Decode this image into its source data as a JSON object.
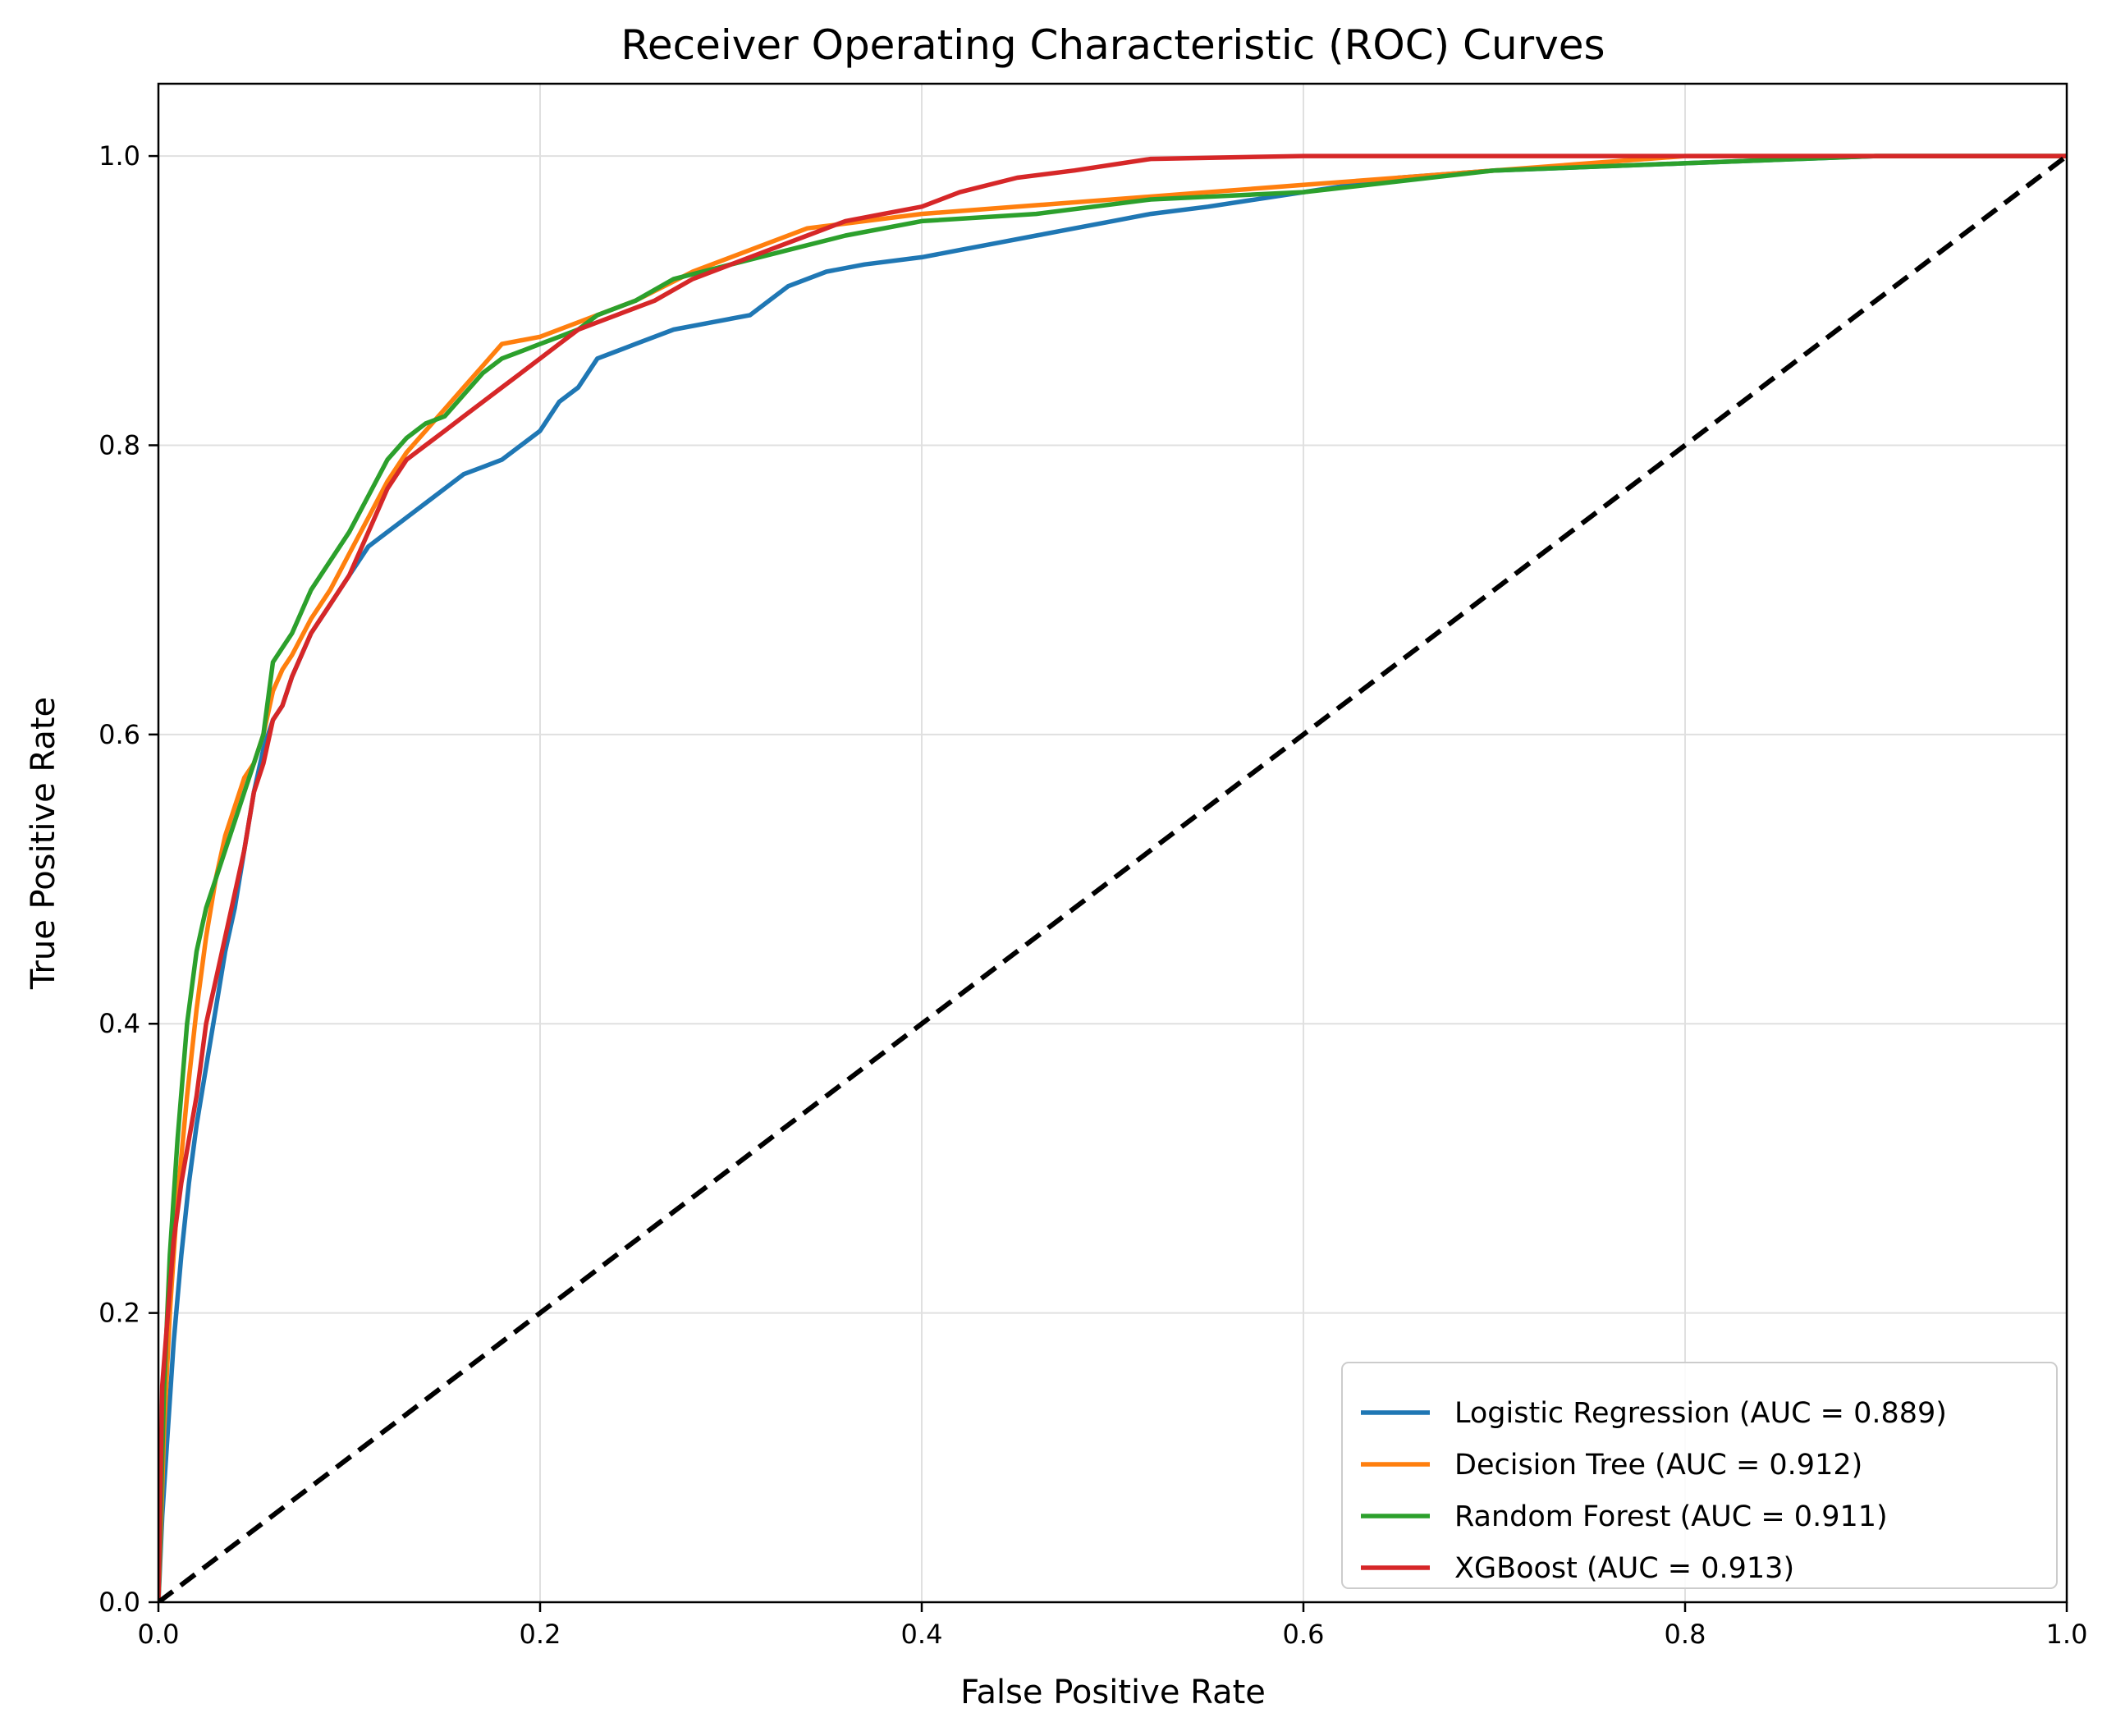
{
  "chart_data": {
    "type": "line",
    "title": "Receiver Operating Characteristic (ROC) Curves",
    "xlabel": "False Positive Rate",
    "ylabel": "True Positive Rate",
    "xlim": [
      0.0,
      1.0
    ],
    "ylim": [
      0.0,
      1.05
    ],
    "xticks": [
      "0.0",
      "0.2",
      "0.4",
      "0.6",
      "0.8",
      "1.0"
    ],
    "yticks": [
      "0.0",
      "0.2",
      "0.4",
      "0.6",
      "0.8",
      "1.0"
    ],
    "xtick_values": [
      0.0,
      0.2,
      0.4,
      0.6,
      0.8,
      1.0
    ],
    "ytick_values": [
      0.0,
      0.2,
      0.4,
      0.6,
      0.8,
      1.0
    ],
    "grid": true,
    "legend_position": "lower-right",
    "series": [
      {
        "name": "Logistic Regression (AUC = 0.889)",
        "color": "#1f77b4",
        "x": [
          0.0,
          0.002,
          0.005,
          0.008,
          0.012,
          0.016,
          0.02,
          0.025,
          0.03,
          0.035,
          0.04,
          0.045,
          0.05,
          0.055,
          0.06,
          0.065,
          0.07,
          0.08,
          0.09,
          0.1,
          0.11,
          0.12,
          0.13,
          0.14,
          0.15,
          0.16,
          0.17,
          0.18,
          0.19,
          0.2,
          0.21,
          0.22,
          0.23,
          0.24,
          0.25,
          0.27,
          0.29,
          0.31,
          0.32,
          0.33,
          0.35,
          0.37,
          0.4,
          0.42,
          0.44,
          0.46,
          0.48,
          0.5,
          0.52,
          0.55,
          0.6,
          0.65,
          0.7,
          0.8,
          0.9,
          1.0
        ],
        "y": [
          0.0,
          0.06,
          0.12,
          0.18,
          0.24,
          0.29,
          0.33,
          0.37,
          0.41,
          0.45,
          0.48,
          0.52,
          0.56,
          0.59,
          0.61,
          0.62,
          0.64,
          0.67,
          0.69,
          0.71,
          0.73,
          0.74,
          0.75,
          0.76,
          0.77,
          0.78,
          0.785,
          0.79,
          0.8,
          0.81,
          0.83,
          0.84,
          0.86,
          0.865,
          0.87,
          0.88,
          0.885,
          0.89,
          0.9,
          0.91,
          0.92,
          0.925,
          0.93,
          0.935,
          0.94,
          0.945,
          0.95,
          0.955,
          0.96,
          0.965,
          0.975,
          0.985,
          0.99,
          0.995,
          1.0,
          1.0
        ]
      },
      {
        "name": "Decision Tree (AUC = 0.912)",
        "color": "#ff7f0e",
        "x": [
          0.0,
          0.003,
          0.006,
          0.01,
          0.015,
          0.02,
          0.025,
          0.03,
          0.035,
          0.04,
          0.045,
          0.05,
          0.055,
          0.06,
          0.065,
          0.07,
          0.08,
          0.09,
          0.1,
          0.11,
          0.12,
          0.13,
          0.14,
          0.15,
          0.16,
          0.17,
          0.18,
          0.2,
          0.22,
          0.25,
          0.28,
          0.31,
          0.34,
          0.37,
          0.4,
          0.45,
          0.5,
          0.55,
          0.6,
          0.65,
          0.7,
          0.75,
          0.8,
          0.9,
          1.0
        ],
        "y": [
          0.0,
          0.12,
          0.2,
          0.28,
          0.35,
          0.41,
          0.46,
          0.5,
          0.53,
          0.55,
          0.57,
          0.58,
          0.6,
          0.63,
          0.645,
          0.655,
          0.68,
          0.7,
          0.725,
          0.75,
          0.775,
          0.795,
          0.81,
          0.825,
          0.84,
          0.855,
          0.87,
          0.875,
          0.885,
          0.9,
          0.92,
          0.935,
          0.95,
          0.955,
          0.96,
          0.965,
          0.97,
          0.975,
          0.98,
          0.985,
          0.99,
          0.995,
          1.0,
          1.0,
          1.0
        ]
      },
      {
        "name": "Random Forest (AUC = 0.911)",
        "color": "#2ca02c",
        "x": [
          0.0,
          0.003,
          0.006,
          0.01,
          0.015,
          0.02,
          0.025,
          0.03,
          0.035,
          0.04,
          0.045,
          0.05,
          0.055,
          0.06,
          0.065,
          0.07,
          0.08,
          0.09,
          0.1,
          0.11,
          0.12,
          0.13,
          0.14,
          0.15,
          0.16,
          0.17,
          0.18,
          0.19,
          0.2,
          0.21,
          0.22,
          0.23,
          0.25,
          0.27,
          0.3,
          0.33,
          0.36,
          0.4,
          0.46,
          0.52,
          0.6,
          0.7,
          0.8,
          0.9,
          1.0
        ],
        "y": [
          0.0,
          0.15,
          0.24,
          0.32,
          0.4,
          0.45,
          0.48,
          0.5,
          0.52,
          0.54,
          0.56,
          0.58,
          0.6,
          0.65,
          0.66,
          0.67,
          0.7,
          0.72,
          0.74,
          0.765,
          0.79,
          0.805,
          0.815,
          0.82,
          0.835,
          0.85,
          0.86,
          0.865,
          0.87,
          0.875,
          0.88,
          0.89,
          0.9,
          0.915,
          0.925,
          0.935,
          0.945,
          0.955,
          0.96,
          0.97,
          0.975,
          0.99,
          0.995,
          1.0,
          1.0
        ]
      },
      {
        "name": "XGBoost (AUC = 0.913)",
        "color": "#d62728",
        "x": [
          0.0,
          0.002,
          0.005,
          0.008,
          0.012,
          0.016,
          0.02,
          0.025,
          0.03,
          0.035,
          0.04,
          0.045,
          0.05,
          0.055,
          0.06,
          0.065,
          0.07,
          0.08,
          0.09,
          0.1,
          0.11,
          0.12,
          0.13,
          0.14,
          0.15,
          0.16,
          0.17,
          0.18,
          0.19,
          0.2,
          0.21,
          0.22,
          0.23,
          0.24,
          0.26,
          0.28,
          0.3,
          0.32,
          0.34,
          0.36,
          0.38,
          0.4,
          0.42,
          0.45,
          0.48,
          0.52,
          0.6,
          0.7,
          0.8,
          0.9,
          1.0
        ],
        "y": [
          0.0,
          0.15,
          0.2,
          0.25,
          0.29,
          0.32,
          0.35,
          0.4,
          0.43,
          0.46,
          0.49,
          0.52,
          0.56,
          0.58,
          0.61,
          0.62,
          0.64,
          0.67,
          0.69,
          0.71,
          0.74,
          0.77,
          0.79,
          0.8,
          0.81,
          0.82,
          0.83,
          0.84,
          0.85,
          0.86,
          0.87,
          0.88,
          0.885,
          0.89,
          0.9,
          0.915,
          0.925,
          0.935,
          0.945,
          0.955,
          0.96,
          0.965,
          0.975,
          0.985,
          0.99,
          0.998,
          1.0,
          1.0,
          1.0,
          1.0,
          1.0
        ]
      },
      {
        "color": "#000000",
        "dashed": true,
        "x": [
          0.0,
          1.0
        ],
        "y": [
          0.0,
          1.0
        ]
      }
    ]
  }
}
